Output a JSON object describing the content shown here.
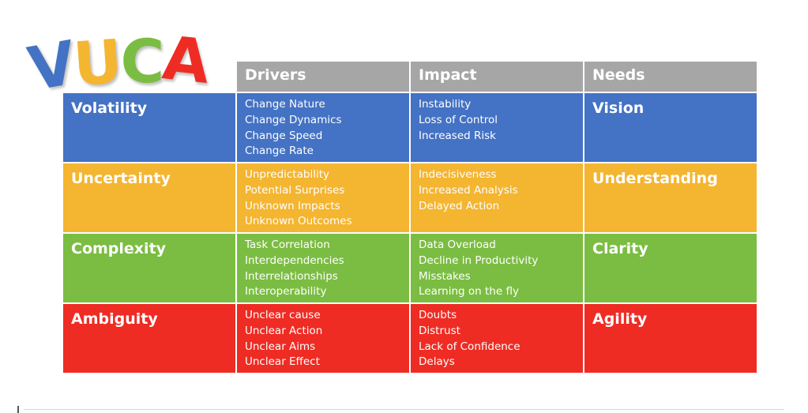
{
  "logo": {
    "letters": [
      {
        "char": "V",
        "color": "#4472c4"
      },
      {
        "char": "U",
        "color": "#f4b530"
      },
      {
        "char": "C",
        "color": "#7bbd42"
      },
      {
        "char": "A",
        "color": "#ee2c24"
      }
    ]
  },
  "headers": [
    "Drivers",
    "Impact",
    "Needs"
  ],
  "colors": {
    "header": "#a6a6a6",
    "rows": [
      "#4472c4",
      "#f4b530",
      "#7bbd42",
      "#ee2c24"
    ]
  },
  "rows": [
    {
      "title": "Volatility",
      "drivers": [
        "Change Nature",
        "Change Dynamics",
        "Change Speed",
        "Change Rate"
      ],
      "impact": [
        "Instability",
        "Loss of Control",
        "Increased Risk"
      ],
      "need": "Vision"
    },
    {
      "title": "Uncertainty",
      "drivers": [
        "Unpredictability",
        "Potential Surprises",
        "Unknown Impacts",
        "Unknown Outcomes"
      ],
      "impact": [
        "Indecisiveness",
        "Increased Analysis",
        "Delayed Action"
      ],
      "need": "Understanding"
    },
    {
      "title": "Complexity",
      "drivers": [
        "Task Correlation",
        "Interdependencies",
        "Interrelationships",
        "Interoperability"
      ],
      "impact": [
        "Data Overload",
        "Decline in Productivity",
        "Misstakes",
        "Learning on the fly"
      ],
      "need": "Clarity"
    },
    {
      "title": "Ambiguity",
      "drivers": [
        "Unclear cause",
        "Unclear Action",
        "Unclear Aims",
        "Unclear Effect"
      ],
      "impact": [
        "Doubts",
        "Distrust",
        "Lack of Confidence",
        "Delays"
      ],
      "need": "Agility"
    }
  ]
}
